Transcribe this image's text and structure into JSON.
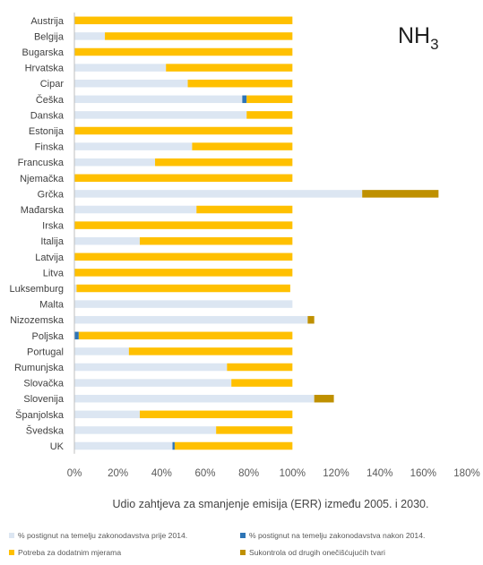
{
  "chart_data": {
    "type": "bar",
    "orientation": "horizontal",
    "stacked": true,
    "annotation_main": "NH",
    "annotation_sub": "3",
    "xlabel": "Udio zahtjeva za smanjenje emisija (ERR) između 2005. i 2030.",
    "xlim": [
      0,
      180
    ],
    "x_ticks": [
      "0%",
      "20%",
      "40%",
      "60%",
      "80%",
      "100%",
      "120%",
      "140%",
      "160%",
      "180%"
    ],
    "grid": false,
    "legend_position": "bottom",
    "categories": [
      "Austrija",
      "Belgija",
      "Bugarska",
      "Hrvatska",
      "Cipar",
      "Češka",
      "Danska",
      "Estonija",
      "Finska",
      "Francuska",
      "Njemačka",
      "Grčka",
      "Mađarska",
      "Irska",
      "Italija",
      "Latvija",
      "Litva",
      "Luksemburg",
      "Malta",
      "Nizozemska",
      "Poljska",
      "Portugal",
      "Rumunjska",
      "Slovačka",
      "Slovenija",
      "Španjolska",
      "Švedska",
      "UK"
    ],
    "series": [
      {
        "name": "% postignut na temelju zakonodavstva prije 2014.",
        "color": "#dce6f2",
        "values": [
          0,
          14,
          0,
          42,
          52,
          77,
          79,
          0,
          54,
          37,
          0,
          132,
          56,
          0,
          30,
          0,
          0,
          1,
          100,
          107,
          0,
          25,
          70,
          72,
          110,
          30,
          65,
          45
        ]
      },
      {
        "name": "% postignut na temelju zakonodavstva nakon 2014.",
        "color": "#2e75b6",
        "values": [
          0,
          0,
          0,
          0,
          0,
          2,
          0,
          0,
          0,
          0,
          0,
          0,
          0,
          0,
          0,
          0,
          0,
          0,
          0,
          0,
          2,
          0,
          0,
          0,
          0,
          0,
          0,
          1
        ]
      },
      {
        "name": "Potreba za dodatnim mjerama",
        "color": "#ffc000",
        "values": [
          100,
          86,
          100,
          58,
          48,
          21,
          21,
          100,
          46,
          63,
          100,
          0,
          44,
          100,
          70,
          100,
          100,
          98,
          0,
          0,
          98,
          75,
          30,
          28,
          0,
          70,
          35,
          54
        ]
      },
      {
        "name": "Sukontrola od drugih onečišćujućih tvari",
        "color": "#bf9000",
        "values": [
          0,
          0,
          0,
          0,
          0,
          0,
          0,
          0,
          0,
          0,
          0,
          35,
          0,
          0,
          0,
          0,
          0,
          0,
          0,
          3,
          0,
          0,
          0,
          0,
          9,
          0,
          0,
          0
        ]
      }
    ]
  }
}
